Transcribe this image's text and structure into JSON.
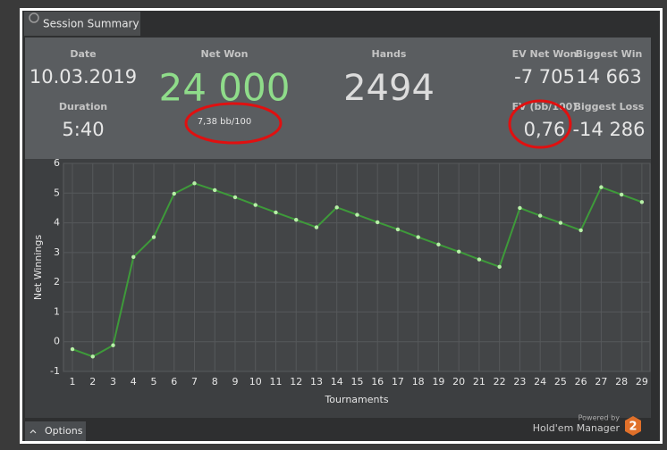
{
  "window": {
    "tab": "Session Summary",
    "stats": {
      "date": {
        "label": "Date",
        "value": "10.03.2019"
      },
      "duration": {
        "label": "Duration",
        "value": "5:40"
      },
      "net_won": {
        "label": "Net Won",
        "value": "24 000",
        "sub": "7,38 bb/100"
      },
      "hands": {
        "label": "Hands",
        "value": "2494"
      },
      "ev_net_won": {
        "label": "EV Net Won",
        "value": "-7 705"
      },
      "biggest_win": {
        "label": "Biggest Win",
        "value": "14 663"
      },
      "ev_bb": {
        "label": "EV (bb/100)",
        "value": "0,76"
      },
      "biggest_loss": {
        "label": "Biggest Loss",
        "value": "-14 286"
      }
    },
    "options": "Options",
    "powered_by": "Powered by",
    "brand": "Hold'em Manager",
    "brand_logo": "2"
  },
  "chart_data": {
    "type": "line",
    "x_label": "Tournaments",
    "y_label": "Net Winnings",
    "x": [
      1,
      2,
      3,
      4,
      5,
      6,
      7,
      8,
      9,
      10,
      11,
      12,
      13,
      14,
      15,
      16,
      17,
      18,
      19,
      20,
      21,
      22,
      23,
      24,
      25,
      26,
      27,
      28,
      29
    ],
    "values": [
      -0.25,
      -0.5,
      -0.12,
      2.85,
      3.52,
      4.98,
      5.33,
      5.1,
      4.86,
      4.6,
      4.35,
      4.1,
      3.85,
      4.52,
      4.27,
      4.02,
      3.78,
      3.52,
      3.27,
      3.03,
      2.77,
      2.52,
      4.5,
      4.24,
      4,
      3.75,
      5.2,
      4.95,
      4.7
    ],
    "color": "#3e9a3a",
    "marker_color": "#b8f0a8",
    "xlim": [
      0.56,
      29.4
    ],
    "ylim": [
      -1,
      6
    ],
    "xticks": [
      1,
      2,
      3,
      4,
      5,
      6,
      7,
      8,
      9,
      10,
      11,
      12,
      13,
      14,
      15,
      16,
      17,
      18,
      19,
      20,
      21,
      22,
      23,
      24,
      25,
      26,
      27,
      28,
      29
    ],
    "yticks": [
      -1,
      0,
      1,
      2,
      3,
      4,
      5,
      6
    ],
    "grid": true
  }
}
